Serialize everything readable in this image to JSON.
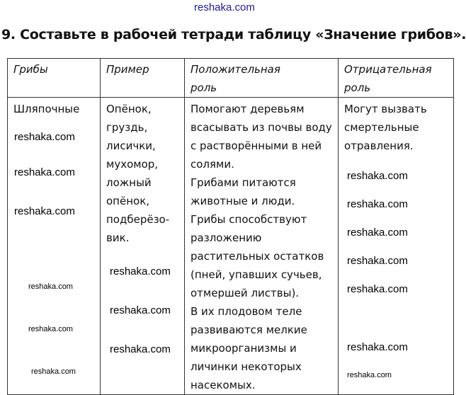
{
  "watermark_text": "reshaka.com",
  "title": "9. Составьте в рабочей тетради таблицу «Значение грибов».",
  "table": {
    "headers": [
      [
        "Грибы"
      ],
      [
        "Пример"
      ],
      [
        "Положительная",
        "роль"
      ],
      [
        "Отрицательная",
        "роль"
      ]
    ],
    "row": {
      "mushrooms": [
        "Шляпочные"
      ],
      "examples": [
        "Опёнок,",
        "груздь,",
        "лисички,",
        "мухомор,",
        "ложный",
        "опёнок,",
        "подберёзо-",
        "вик."
      ],
      "positive": [
        "Помогают деревьям",
        "всасывать из почвы воду",
        "с растворёнными в ней",
        "солями.",
        "Грибами питаются",
        "животные и люди.",
        "Грибы способствуют",
        "разложению",
        "растительных остатков",
        "(пней, упавших сучьев,",
        "отмершей листвы).",
        "В их плодовом теле",
        "развиваются мелкие",
        "микроорганизмы и",
        "личинки некоторых",
        "насекомых."
      ],
      "negative": [
        "Могут вызвать",
        "смертельные",
        "отравления."
      ]
    }
  }
}
